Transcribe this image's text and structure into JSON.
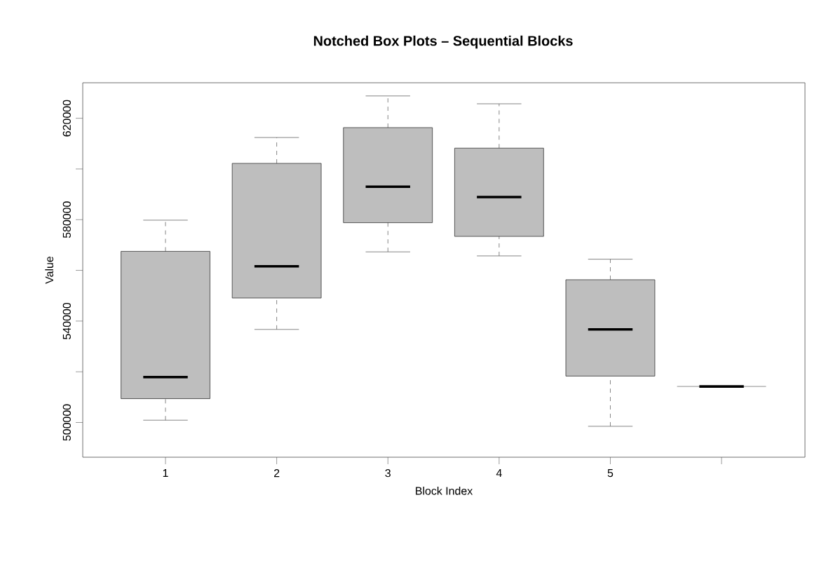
{
  "chart_data": {
    "type": "box",
    "title": "Notched Box Plots – Sequential Blocks",
    "xlabel": "Block Index",
    "ylabel": "Value",
    "categories": [
      "1",
      "2",
      "3",
      "4",
      "5",
      null
    ],
    "boxes": [
      {
        "low": 500900,
        "q1": 509400,
        "median": 517900,
        "q3": 567500,
        "high": 579800
      },
      {
        "low": 536700,
        "q1": 549100,
        "median": 561600,
        "q3": 602200,
        "high": 612400
      },
      {
        "low": 567300,
        "q1": 578800,
        "median": 593000,
        "q3": 616300,
        "high": 628800
      },
      {
        "low": 565700,
        "q1": 573400,
        "median": 588900,
        "q3": 608200,
        "high": 625700
      },
      {
        "low": 498500,
        "q1": 518300,
        "median": 536700,
        "q3": 556300,
        "high": 564400
      },
      {
        "low": 514200,
        "q1": 514200,
        "median": 514200,
        "q3": 514200,
        "high": 514200
      }
    ],
    "color": "#bebebe",
    "ylim": [
      486300,
      634000
    ],
    "yticks": [
      500000,
      {
        "value": 520000,
        "label": null
      },
      540000,
      {
        "value": 560000,
        "label": null
      },
      580000,
      {
        "value": 600000,
        "label": null
      },
      620000
    ]
  }
}
